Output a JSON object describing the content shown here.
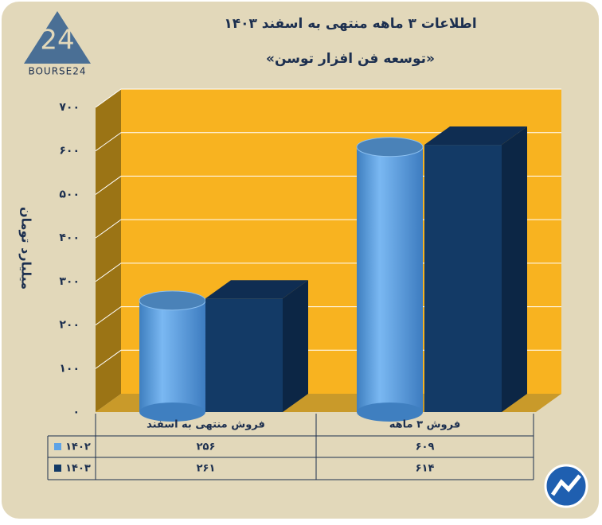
{
  "logo": "BOURSE24",
  "chart_data": {
    "type": "bar3d",
    "title": "اطلاعات ۳ ماهه منتهی به اسفند ۱۴۰۳",
    "subtitle": "«توسعه فن افزار توسن»",
    "y_label": "میلیارد تومان",
    "categories": [
      "فروش منتهی به اسفند",
      "فروش ۳ ماهه"
    ],
    "series": [
      {
        "name": "۱۴۰۲",
        "color": "#5ea3e6",
        "values": [
          256,
          609
        ],
        "value_labels": [
          "۲۵۶",
          "۶۰۹"
        ]
      },
      {
        "name": "۱۴۰۳",
        "color": "#133a66",
        "values": [
          261,
          614
        ],
        "value_labels": [
          "۲۶۱",
          "۶۱۴"
        ]
      }
    ],
    "ylim": [
      0,
      700
    ],
    "yticks": [
      {
        "value": 0,
        "label": "۰"
      },
      {
        "value": 100,
        "label": "۱۰۰"
      },
      {
        "value": 200,
        "label": "۲۰۰"
      },
      {
        "value": 300,
        "label": "۳۰۰"
      },
      {
        "value": 400,
        "label": "۴۰۰"
      },
      {
        "value": 500,
        "label": "۵۰۰"
      },
      {
        "value": 600,
        "label": "۶۰۰"
      },
      {
        "value": 700,
        "label": "۷۰۰"
      }
    ],
    "grid": true
  }
}
